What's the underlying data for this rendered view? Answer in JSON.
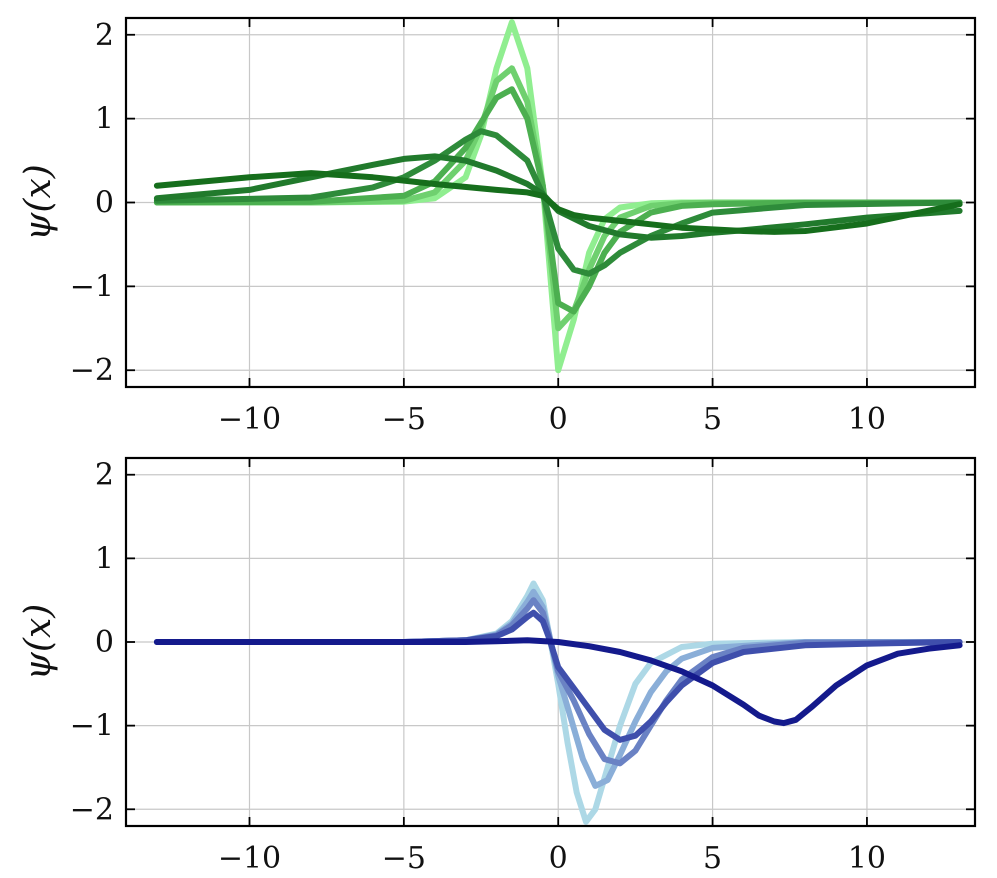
{
  "chart_data": [
    {
      "type": "line",
      "panel": "top",
      "title": "",
      "xlabel": "",
      "ylabel": "ψ(x)",
      "xlim": [
        -14,
        13.5
      ],
      "ylim": [
        -2.2,
        2.2
      ],
      "xticks": [
        -10,
        -5,
        0,
        5,
        10
      ],
      "yticks": [
        -2,
        -1,
        0,
        1,
        2
      ],
      "grid": true,
      "legend": "none",
      "series": [
        {
          "color": "#90ee90",
          "x": [
            -13,
            -8,
            -5,
            -4,
            -3,
            -2.5,
            -2,
            -1.5,
            -1,
            -0.5,
            0,
            0.5,
            1,
            1.5,
            2,
            3,
            4,
            5,
            8,
            13
          ],
          "y": [
            0,
            0,
            0.01,
            0.05,
            0.3,
            0.8,
            1.6,
            2.15,
            1.6,
            0.2,
            -2.0,
            -1.4,
            -0.6,
            -0.2,
            -0.06,
            -0.01,
            0,
            0,
            0,
            0
          ]
        },
        {
          "color": "#6fd06f",
          "x": [
            -13,
            -8,
            -5,
            -4,
            -3,
            -2.5,
            -2,
            -1.5,
            -1,
            -0.5,
            0,
            0.5,
            1,
            1.5,
            2,
            3,
            4,
            5,
            8,
            13
          ],
          "y": [
            0,
            0,
            0.02,
            0.12,
            0.5,
            0.9,
            1.45,
            1.6,
            1.2,
            0.2,
            -1.5,
            -1.3,
            -0.8,
            -0.4,
            -0.18,
            -0.04,
            -0.01,
            0,
            0,
            0
          ]
        },
        {
          "color": "#4caf50",
          "x": [
            -13,
            -8,
            -5,
            -4,
            -3,
            -2.5,
            -2,
            -1.5,
            -1,
            -0.5,
            0,
            0.5,
            1,
            1.5,
            2,
            3,
            4,
            5,
            8,
            13
          ],
          "y": [
            0,
            0.01,
            0.08,
            0.25,
            0.65,
            0.95,
            1.25,
            1.35,
            1.0,
            0.2,
            -1.2,
            -1.3,
            -1.0,
            -0.6,
            -0.35,
            -0.12,
            -0.04,
            -0.02,
            0,
            0
          ]
        },
        {
          "color": "#2e8b3a",
          "x": [
            -13,
            -8,
            -6,
            -5,
            -4,
            -3,
            -2.5,
            -2,
            -1,
            -0.5,
            0,
            0.5,
            1,
            1.5,
            2,
            3,
            4,
            5,
            8,
            13
          ],
          "y": [
            0.02,
            0.06,
            0.18,
            0.3,
            0.5,
            0.75,
            0.85,
            0.8,
            0.5,
            0.1,
            -0.55,
            -0.8,
            -0.85,
            -0.75,
            -0.6,
            -0.4,
            -0.25,
            -0.12,
            -0.03,
            0
          ]
        },
        {
          "color": "#217a2c",
          "x": [
            -13,
            -10,
            -8,
            -6,
            -5,
            -4,
            -3,
            -2,
            -1,
            -0.5,
            0,
            1,
            2,
            3,
            4,
            5,
            6,
            8,
            10,
            13
          ],
          "y": [
            0.05,
            0.15,
            0.3,
            0.45,
            0.52,
            0.55,
            0.5,
            0.38,
            0.22,
            0.1,
            -0.1,
            -0.28,
            -0.38,
            -0.42,
            -0.4,
            -0.36,
            -0.33,
            -0.26,
            -0.18,
            -0.1
          ]
        },
        {
          "color": "#166e1c",
          "x": [
            -13,
            -10,
            -8,
            -6,
            -4,
            -2,
            -1,
            -0.5,
            0,
            0.5,
            1,
            2,
            3,
            4,
            6,
            7,
            8,
            10,
            13
          ],
          "y": [
            0.2,
            0.3,
            0.35,
            0.3,
            0.22,
            0.15,
            0.12,
            0.08,
            -0.08,
            -0.15,
            -0.18,
            -0.22,
            -0.26,
            -0.3,
            -0.34,
            -0.35,
            -0.34,
            -0.25,
            -0.02
          ]
        }
      ]
    },
    {
      "type": "line",
      "panel": "bottom",
      "title": "",
      "xlabel": "",
      "ylabel": "ψ(x)",
      "xlim": [
        -14,
        13.5
      ],
      "ylim": [
        -2.2,
        2.2
      ],
      "xticks": [
        -10,
        -5,
        0,
        5,
        10
      ],
      "yticks": [
        -2,
        -1,
        0,
        1,
        2
      ],
      "grid": true,
      "legend": "none",
      "series": [
        {
          "color": "#add8e6",
          "x": [
            -13,
            -5,
            -3,
            -2,
            -1.5,
            -1,
            -0.8,
            -0.5,
            -0.3,
            0,
            0.3,
            0.6,
            0.9,
            1.2,
            1.6,
            2,
            2.5,
            3,
            4,
            5,
            8,
            13
          ],
          "y": [
            0,
            0,
            0.02,
            0.1,
            0.25,
            0.55,
            0.7,
            0.5,
            0.1,
            -0.5,
            -1.2,
            -1.8,
            -2.15,
            -2.0,
            -1.5,
            -1.0,
            -0.5,
            -0.25,
            -0.06,
            -0.02,
            0,
            0
          ]
        },
        {
          "color": "#8aaed8",
          "x": [
            -13,
            -5,
            -3,
            -2,
            -1.5,
            -1,
            -0.8,
            -0.5,
            -0.3,
            0,
            0.4,
            0.8,
            1.2,
            1.6,
            2,
            2.5,
            3,
            3.5,
            4,
            5,
            8,
            13
          ],
          "y": [
            0,
            0,
            0.02,
            0.09,
            0.22,
            0.48,
            0.6,
            0.42,
            0.1,
            -0.4,
            -0.9,
            -1.4,
            -1.72,
            -1.65,
            -1.35,
            -0.95,
            -0.6,
            -0.35,
            -0.2,
            -0.07,
            0,
            0
          ]
        },
        {
          "color": "#6a82c4",
          "x": [
            -13,
            -5,
            -3,
            -2,
            -1.5,
            -1,
            -0.8,
            -0.5,
            -0.3,
            0,
            0.5,
            1,
            1.5,
            2,
            2.5,
            3,
            3.5,
            4,
            5,
            6,
            8,
            13
          ],
          "y": [
            0,
            0,
            0.02,
            0.08,
            0.2,
            0.4,
            0.5,
            0.35,
            0.08,
            -0.35,
            -0.7,
            -1.1,
            -1.4,
            -1.45,
            -1.3,
            -1.0,
            -0.7,
            -0.45,
            -0.18,
            -0.07,
            -0.01,
            0
          ]
        },
        {
          "color": "#3f4fac",
          "x": [
            -13,
            -5,
            -3,
            -2,
            -1.5,
            -1,
            -0.8,
            -0.5,
            -0.3,
            0,
            0.5,
            1,
            1.5,
            2,
            2.5,
            3,
            3.5,
            4,
            5,
            6,
            8,
            10,
            13
          ],
          "y": [
            0,
            0,
            0.02,
            0.07,
            0.15,
            0.3,
            0.35,
            0.25,
            0.05,
            -0.3,
            -0.55,
            -0.8,
            -1.05,
            -1.17,
            -1.12,
            -0.95,
            -0.72,
            -0.52,
            -0.25,
            -0.12,
            -0.04,
            -0.02,
            0
          ]
        },
        {
          "color": "#141a8c",
          "x": [
            -13,
            -5,
            -3,
            -2,
            -1,
            0,
            1,
            2,
            3,
            4,
            5,
            6,
            6.5,
            7,
            7.3,
            7.7,
            8.2,
            9,
            10,
            11,
            12,
            13
          ],
          "y": [
            0,
            0,
            0,
            0.01,
            0.02,
            0,
            -0.05,
            -0.12,
            -0.22,
            -0.35,
            -0.52,
            -0.75,
            -0.88,
            -0.95,
            -0.97,
            -0.93,
            -0.78,
            -0.52,
            -0.28,
            -0.14,
            -0.08,
            -0.04
          ]
        }
      ]
    }
  ]
}
